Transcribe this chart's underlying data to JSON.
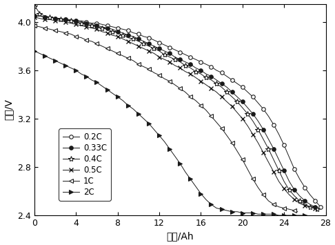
{
  "title": "",
  "xlabel": "容量/Ah",
  "ylabel": "电压/V",
  "xlim": [
    0,
    28
  ],
  "ylim": [
    2.4,
    4.15
  ],
  "xticks": [
    0,
    4,
    8,
    12,
    16,
    20,
    24,
    28
  ],
  "yticks": [
    2.4,
    2.8,
    3.2,
    3.6,
    4.0
  ],
  "legend_labels": [
    "0.2C",
    "0.33C",
    "0.4C",
    "0.5C",
    "1C",
    "2C"
  ],
  "line_color": "#1a1a1a",
  "curves": {
    "0.2C": {
      "x": [
        0,
        0.5,
        1,
        1.5,
        2,
        2.5,
        3,
        3.5,
        4,
        4.5,
        5,
        5.5,
        6,
        6.5,
        7,
        7.5,
        8,
        8.5,
        9,
        9.5,
        10,
        10.5,
        11,
        11.5,
        12,
        12.5,
        13,
        13.5,
        14,
        14.5,
        15,
        15.5,
        16,
        16.5,
        17,
        17.5,
        18,
        18.5,
        19,
        19.5,
        20,
        20.5,
        21,
        21.5,
        22,
        22.5,
        23,
        23.5,
        24,
        24.5,
        25,
        25.5,
        26,
        26.5,
        27,
        27.3,
        27.5
      ],
      "y": [
        4.05,
        4.05,
        4.04,
        4.04,
        4.03,
        4.03,
        4.02,
        4.02,
        4.01,
        4.01,
        4.0,
        3.99,
        3.99,
        3.98,
        3.97,
        3.96,
        3.95,
        3.94,
        3.93,
        3.91,
        3.9,
        3.88,
        3.87,
        3.85,
        3.83,
        3.81,
        3.79,
        3.77,
        3.75,
        3.73,
        3.71,
        3.69,
        3.67,
        3.65,
        3.63,
        3.6,
        3.58,
        3.55,
        3.52,
        3.49,
        3.46,
        3.42,
        3.38,
        3.33,
        3.28,
        3.22,
        3.15,
        3.07,
        2.98,
        2.88,
        2.78,
        2.7,
        2.63,
        2.57,
        2.52,
        2.49,
        2.47
      ]
    },
    "0.33C": {
      "x": [
        0,
        0.5,
        1,
        1.5,
        2,
        2.5,
        3,
        3.5,
        4,
        4.5,
        5,
        5.5,
        6,
        6.5,
        7,
        7.5,
        8,
        8.5,
        9,
        9.5,
        10,
        10.5,
        11,
        11.5,
        12,
        12.5,
        13,
        13.5,
        14,
        14.5,
        15,
        15.5,
        16,
        16.5,
        17,
        17.5,
        18,
        18.5,
        19,
        19.5,
        20,
        20.5,
        21,
        21.5,
        22,
        22.5,
        23,
        23.5,
        24,
        24.5,
        25,
        25.5,
        26,
        26.5,
        27,
        27.2
      ],
      "y": [
        4.05,
        4.05,
        4.04,
        4.04,
        4.03,
        4.03,
        4.02,
        4.01,
        4.01,
        4.0,
        3.99,
        3.98,
        3.97,
        3.96,
        3.95,
        3.94,
        3.92,
        3.91,
        3.89,
        3.88,
        3.86,
        3.84,
        3.82,
        3.8,
        3.78,
        3.76,
        3.74,
        3.71,
        3.69,
        3.67,
        3.65,
        3.62,
        3.6,
        3.57,
        3.55,
        3.52,
        3.49,
        3.46,
        3.42,
        3.38,
        3.34,
        3.29,
        3.24,
        3.18,
        3.11,
        3.03,
        2.95,
        2.86,
        2.77,
        2.68,
        2.61,
        2.56,
        2.52,
        2.49,
        2.47,
        2.46
      ]
    },
    "0.4C": {
      "x": [
        0,
        0.3,
        0.5,
        1,
        1.5,
        2,
        2.5,
        3,
        3.5,
        4,
        4.5,
        5,
        5.5,
        6,
        6.5,
        7,
        7.5,
        8,
        8.5,
        9,
        9.5,
        10,
        10.5,
        11,
        11.5,
        12,
        12.5,
        13,
        13.5,
        14,
        14.5,
        15,
        15.5,
        16,
        16.5,
        17,
        17.5,
        18,
        18.5,
        19,
        19.5,
        20,
        20.5,
        21,
        21.5,
        22,
        22.5,
        23,
        23.5,
        24,
        24.5,
        25,
        25.5,
        26,
        26.5,
        27,
        27.2
      ],
      "y": [
        4.13,
        4.1,
        4.07,
        4.05,
        4.04,
        4.03,
        4.02,
        4.01,
        4.01,
        4.0,
        3.99,
        3.98,
        3.97,
        3.96,
        3.95,
        3.94,
        3.92,
        3.91,
        3.89,
        3.87,
        3.86,
        3.84,
        3.82,
        3.8,
        3.78,
        3.76,
        3.73,
        3.71,
        3.69,
        3.67,
        3.64,
        3.62,
        3.59,
        3.57,
        3.54,
        3.52,
        3.49,
        3.46,
        3.42,
        3.38,
        3.34,
        3.29,
        3.24,
        3.18,
        3.11,
        3.03,
        2.95,
        2.86,
        2.77,
        2.68,
        2.61,
        2.56,
        2.52,
        2.49,
        2.47,
        2.46,
        2.45
      ]
    },
    "0.5C": {
      "x": [
        0,
        0.5,
        1,
        1.5,
        2,
        2.5,
        3,
        3.5,
        4,
        4.5,
        5,
        5.5,
        6,
        6.5,
        7,
        7.5,
        8,
        8.5,
        9,
        9.5,
        10,
        10.5,
        11,
        11.5,
        12,
        12.5,
        13,
        13.5,
        14,
        14.5,
        15,
        15.5,
        16,
        16.5,
        17,
        17.5,
        18,
        18.5,
        19,
        19.5,
        20,
        20.5,
        21,
        21.5,
        22,
        22.5,
        23,
        23.5,
        24,
        24.5,
        25,
        25.5,
        26,
        26.5,
        27,
        27.1
      ],
      "y": [
        4.04,
        4.03,
        4.02,
        4.02,
        4.01,
        4.01,
        4.0,
        3.99,
        3.98,
        3.97,
        3.96,
        3.95,
        3.94,
        3.92,
        3.91,
        3.89,
        3.88,
        3.86,
        3.84,
        3.82,
        3.8,
        3.78,
        3.76,
        3.74,
        3.71,
        3.69,
        3.67,
        3.64,
        3.62,
        3.59,
        3.57,
        3.54,
        3.51,
        3.48,
        3.45,
        3.42,
        3.38,
        3.34,
        3.3,
        3.25,
        3.2,
        3.14,
        3.07,
        3.0,
        2.92,
        2.84,
        2.76,
        2.68,
        2.62,
        2.57,
        2.53,
        2.5,
        2.48,
        2.47,
        2.46,
        2.45
      ]
    },
    "1C": {
      "x": [
        0,
        0.5,
        1,
        1.5,
        2,
        2.5,
        3,
        3.5,
        4,
        4.5,
        5,
        5.5,
        6,
        6.5,
        7,
        7.5,
        8,
        8.5,
        9,
        9.5,
        10,
        10.5,
        11,
        11.5,
        12,
        12.5,
        13,
        13.5,
        14,
        14.5,
        15,
        15.5,
        16,
        16.5,
        17,
        17.5,
        18,
        18.5,
        19,
        19.5,
        20,
        20.5,
        21,
        21.5,
        22,
        22.5,
        23,
        23.5,
        24,
        24.5,
        25,
        25.3
      ],
      "y": [
        3.97,
        3.96,
        3.95,
        3.94,
        3.93,
        3.92,
        3.91,
        3.9,
        3.88,
        3.87,
        3.85,
        3.84,
        3.82,
        3.8,
        3.78,
        3.76,
        3.74,
        3.72,
        3.7,
        3.68,
        3.65,
        3.63,
        3.61,
        3.58,
        3.56,
        3.53,
        3.51,
        3.48,
        3.45,
        3.42,
        3.38,
        3.35,
        3.31,
        3.27,
        3.22,
        3.17,
        3.12,
        3.06,
        3.0,
        2.93,
        2.86,
        2.78,
        2.7,
        2.63,
        2.57,
        2.52,
        2.49,
        2.47,
        2.46,
        2.45,
        2.44,
        2.43
      ]
    },
    "2C": {
      "x": [
        0,
        0.5,
        1,
        1.5,
        2,
        2.5,
        3,
        3.5,
        4,
        4.5,
        5,
        5.5,
        6,
        6.5,
        7,
        7.5,
        8,
        8.5,
        9,
        9.5,
        10,
        10.5,
        11,
        11.5,
        12,
        12.5,
        13,
        13.5,
        14,
        14.5,
        15,
        15.5,
        16,
        16.5,
        17,
        17.5,
        18,
        18.5,
        19,
        19.5,
        20,
        20.5,
        21,
        21.5,
        22,
        22.5,
        23,
        23.5,
        24,
        24.5,
        25,
        25.5,
        26,
        26.2
      ],
      "y": [
        3.76,
        3.74,
        3.72,
        3.7,
        3.68,
        3.66,
        3.64,
        3.62,
        3.6,
        3.57,
        3.55,
        3.52,
        3.5,
        3.47,
        3.44,
        3.41,
        3.38,
        3.35,
        3.31,
        3.28,
        3.24,
        3.2,
        3.16,
        3.11,
        3.06,
        3.01,
        2.95,
        2.89,
        2.83,
        2.76,
        2.7,
        2.64,
        2.58,
        2.53,
        2.49,
        2.46,
        2.45,
        2.44,
        2.43,
        2.43,
        2.42,
        2.42,
        2.42,
        2.41,
        2.41,
        2.41,
        2.41,
        2.4,
        2.4,
        2.4,
        2.4,
        2.4,
        2.4,
        2.4
      ]
    }
  }
}
